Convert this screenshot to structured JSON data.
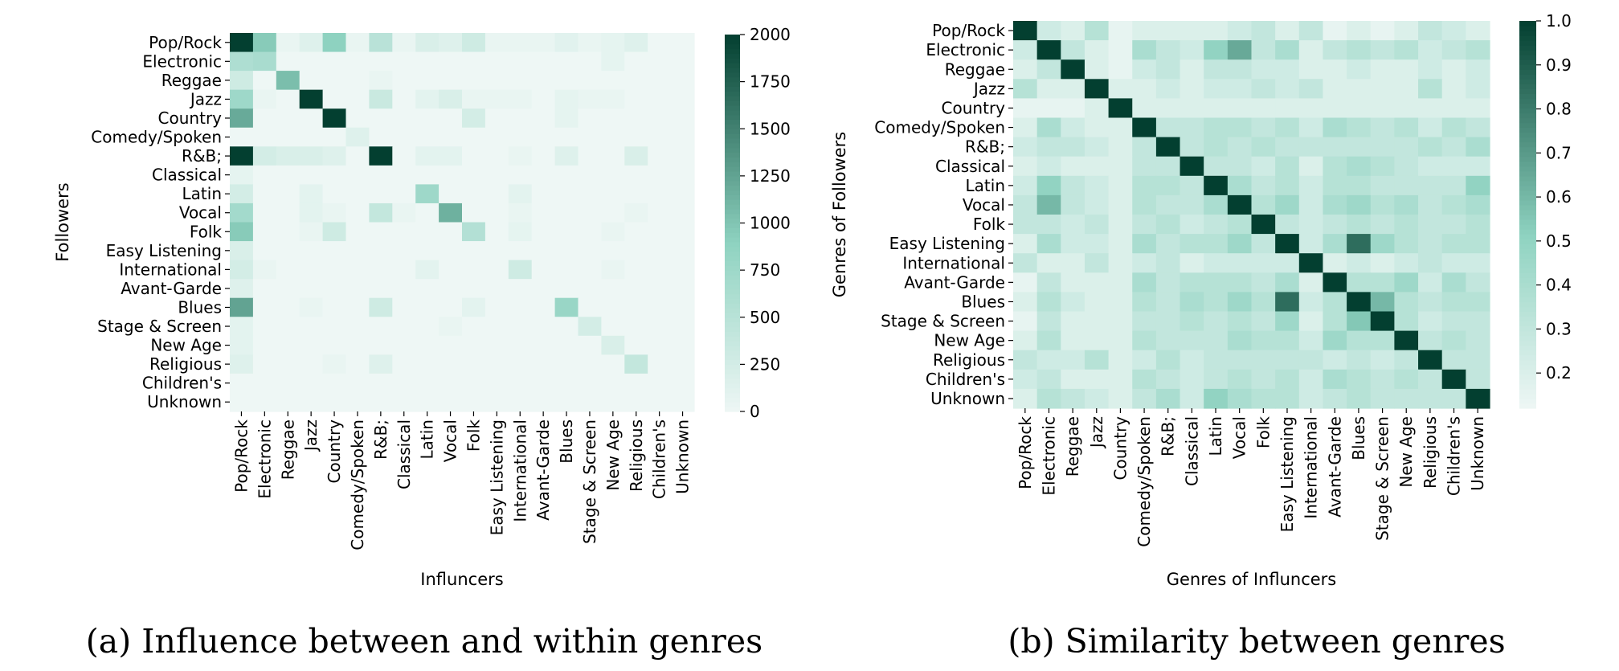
{
  "colors": {
    "low": "#eef7f5",
    "mid": "#8ed2c0",
    "high": "#033f30"
  },
  "chart_data": [
    {
      "type": "heatmap",
      "caption": "(a) Influence between and within genres",
      "xlabel": "Influncers",
      "ylabel": "Followers",
      "categories": [
        "Pop/Rock",
        "Electronic",
        "Reggae",
        "Jazz",
        "Country",
        "Comedy/Spoken",
        "R&B;",
        "Classical",
        "Latin",
        "Vocal",
        "Folk",
        "Easy Listening",
        "International",
        "Avant-Garde",
        "Blues",
        "Stage & Screen",
        "New Age",
        "Religious",
        "Children's",
        "Unknown"
      ],
      "colorbar": {
        "min": 0,
        "max": 2000,
        "ticks": [
          "0",
          "250",
          "500",
          "750",
          "1000",
          "1250",
          "1500",
          "1750",
          "2000"
        ]
      },
      "values": [
        [
          2000,
          950,
          50,
          150,
          900,
          50,
          500,
          50,
          200,
          150,
          300,
          50,
          50,
          50,
          120,
          50,
          80,
          150,
          0,
          0
        ],
        [
          600,
          650,
          0,
          0,
          0,
          0,
          0,
          0,
          0,
          0,
          0,
          0,
          0,
          0,
          0,
          0,
          80,
          0,
          0,
          0
        ],
        [
          300,
          0,
          1050,
          0,
          0,
          0,
          50,
          0,
          0,
          0,
          0,
          0,
          0,
          0,
          0,
          0,
          0,
          0,
          0,
          0
        ],
        [
          750,
          50,
          0,
          2000,
          0,
          0,
          350,
          0,
          100,
          200,
          50,
          50,
          50,
          0,
          80,
          50,
          50,
          0,
          0,
          0
        ],
        [
          1200,
          0,
          0,
          0,
          2000,
          0,
          0,
          0,
          0,
          0,
          250,
          0,
          0,
          0,
          80,
          0,
          0,
          0,
          0,
          0
        ],
        [
          0,
          0,
          0,
          0,
          0,
          150,
          0,
          0,
          0,
          0,
          0,
          0,
          0,
          0,
          0,
          0,
          0,
          0,
          0,
          0
        ],
        [
          2000,
          250,
          200,
          200,
          150,
          0,
          2000,
          0,
          100,
          100,
          0,
          0,
          50,
          0,
          150,
          0,
          0,
          200,
          0,
          0
        ],
        [
          80,
          0,
          0,
          0,
          0,
          0,
          0,
          0,
          0,
          0,
          0,
          0,
          0,
          0,
          0,
          0,
          0,
          0,
          0,
          0
        ],
        [
          250,
          0,
          0,
          100,
          0,
          0,
          0,
          0,
          750,
          0,
          0,
          0,
          100,
          0,
          0,
          0,
          0,
          0,
          0,
          0
        ],
        [
          700,
          0,
          0,
          100,
          50,
          0,
          400,
          50,
          0,
          1150,
          0,
          0,
          50,
          0,
          0,
          0,
          0,
          50,
          0,
          0
        ],
        [
          950,
          0,
          0,
          50,
          300,
          0,
          0,
          0,
          0,
          0,
          550,
          0,
          80,
          0,
          0,
          0,
          50,
          0,
          0,
          0
        ],
        [
          200,
          0,
          0,
          0,
          0,
          0,
          0,
          0,
          0,
          0,
          0,
          0,
          0,
          0,
          0,
          0,
          0,
          0,
          0,
          0
        ],
        [
          250,
          50,
          0,
          0,
          0,
          0,
          0,
          0,
          100,
          0,
          0,
          0,
          300,
          0,
          0,
          0,
          50,
          0,
          0,
          0
        ],
        [
          150,
          0,
          0,
          0,
          0,
          0,
          0,
          0,
          0,
          0,
          0,
          0,
          0,
          0,
          0,
          0,
          0,
          0,
          0,
          0
        ],
        [
          1250,
          0,
          0,
          50,
          0,
          0,
          300,
          0,
          0,
          0,
          100,
          0,
          0,
          0,
          800,
          0,
          0,
          0,
          0,
          0
        ],
        [
          100,
          0,
          0,
          0,
          0,
          0,
          0,
          0,
          0,
          50,
          0,
          0,
          0,
          0,
          0,
          250,
          0,
          0,
          0,
          0
        ],
        [
          100,
          0,
          0,
          0,
          0,
          0,
          0,
          0,
          0,
          0,
          0,
          0,
          0,
          0,
          0,
          0,
          200,
          0,
          0,
          0
        ],
        [
          150,
          0,
          0,
          0,
          50,
          0,
          150,
          0,
          0,
          0,
          0,
          0,
          0,
          0,
          0,
          0,
          0,
          400,
          0,
          0
        ],
        [
          0,
          0,
          0,
          0,
          0,
          0,
          0,
          0,
          0,
          0,
          0,
          0,
          0,
          0,
          0,
          0,
          0,
          0,
          0,
          0
        ],
        [
          0,
          0,
          0,
          0,
          0,
          0,
          0,
          0,
          0,
          0,
          0,
          0,
          0,
          0,
          0,
          0,
          0,
          0,
          0,
          0
        ]
      ]
    },
    {
      "type": "heatmap",
      "caption": "(b) Similarity between genres",
      "xlabel": "Genres of Influncers",
      "ylabel": "Genres of Followers",
      "categories": [
        "Pop/Rock",
        "Electronic",
        "Reggae",
        "Jazz",
        "Country",
        "Comedy/Spoken",
        "R&B;",
        "Classical",
        "Latin",
        "Vocal",
        "Folk",
        "Easy Listening",
        "International",
        "Avant-Garde",
        "Blues",
        "Stage & Screen",
        "New Age",
        "Religious",
        "Children's",
        "Unknown"
      ],
      "colorbar": {
        "min": 0.12,
        "max": 1.0,
        "ticks": [
          "0.2",
          "0.3",
          "0.4",
          "0.5",
          "0.6",
          "0.7",
          "0.8",
          "0.9",
          "1.0"
        ]
      },
      "values": [
        [
          1.0,
          0.25,
          0.2,
          0.35,
          0.15,
          0.2,
          0.2,
          0.2,
          0.2,
          0.25,
          0.3,
          0.2,
          0.3,
          0.15,
          0.2,
          0.15,
          0.2,
          0.3,
          0.25,
          0.2
        ],
        [
          0.25,
          1.0,
          0.3,
          0.2,
          0.15,
          0.4,
          0.3,
          0.25,
          0.5,
          0.65,
          0.3,
          0.4,
          0.2,
          0.3,
          0.35,
          0.3,
          0.35,
          0.25,
          0.3,
          0.35
        ],
        [
          0.2,
          0.3,
          1.0,
          0.2,
          0.15,
          0.25,
          0.3,
          0.2,
          0.3,
          0.3,
          0.25,
          0.25,
          0.2,
          0.2,
          0.25,
          0.2,
          0.2,
          0.25,
          0.2,
          0.25
        ],
        [
          0.35,
          0.2,
          0.2,
          1.0,
          0.2,
          0.2,
          0.25,
          0.2,
          0.25,
          0.25,
          0.3,
          0.25,
          0.3,
          0.2,
          0.2,
          0.2,
          0.2,
          0.35,
          0.2,
          0.25
        ],
        [
          0.15,
          0.15,
          0.15,
          0.2,
          1.0,
          0.2,
          0.2,
          0.2,
          0.2,
          0.2,
          0.2,
          0.2,
          0.2,
          0.2,
          0.2,
          0.2,
          0.2,
          0.2,
          0.2,
          0.2
        ],
        [
          0.2,
          0.4,
          0.25,
          0.2,
          0.2,
          1.0,
          0.3,
          0.3,
          0.35,
          0.35,
          0.3,
          0.35,
          0.25,
          0.4,
          0.35,
          0.3,
          0.35,
          0.25,
          0.35,
          0.3
        ],
        [
          0.25,
          0.3,
          0.3,
          0.25,
          0.2,
          0.3,
          1.0,
          0.3,
          0.35,
          0.3,
          0.35,
          0.3,
          0.3,
          0.3,
          0.3,
          0.3,
          0.3,
          0.35,
          0.3,
          0.4
        ],
        [
          0.2,
          0.25,
          0.2,
          0.2,
          0.2,
          0.3,
          0.3,
          1.0,
          0.3,
          0.3,
          0.25,
          0.35,
          0.2,
          0.35,
          0.4,
          0.35,
          0.3,
          0.25,
          0.25,
          0.25
        ],
        [
          0.25,
          0.5,
          0.3,
          0.25,
          0.2,
          0.35,
          0.35,
          0.3,
          1.0,
          0.4,
          0.3,
          0.35,
          0.25,
          0.35,
          0.35,
          0.3,
          0.3,
          0.3,
          0.3,
          0.5
        ],
        [
          0.3,
          0.6,
          0.3,
          0.25,
          0.2,
          0.35,
          0.3,
          0.3,
          0.4,
          1.0,
          0.35,
          0.45,
          0.25,
          0.4,
          0.45,
          0.35,
          0.4,
          0.3,
          0.35,
          0.4
        ],
        [
          0.3,
          0.3,
          0.25,
          0.3,
          0.2,
          0.3,
          0.35,
          0.25,
          0.3,
          0.35,
          1.0,
          0.3,
          0.25,
          0.3,
          0.35,
          0.3,
          0.35,
          0.3,
          0.3,
          0.35
        ],
        [
          0.2,
          0.4,
          0.25,
          0.25,
          0.2,
          0.4,
          0.3,
          0.35,
          0.35,
          0.45,
          0.3,
          1.0,
          0.25,
          0.4,
          0.85,
          0.45,
          0.35,
          0.3,
          0.35,
          0.35
        ],
        [
          0.3,
          0.2,
          0.2,
          0.3,
          0.2,
          0.25,
          0.3,
          0.2,
          0.25,
          0.25,
          0.25,
          0.25,
          1.0,
          0.2,
          0.25,
          0.2,
          0.25,
          0.3,
          0.25,
          0.25
        ],
        [
          0.15,
          0.3,
          0.2,
          0.2,
          0.2,
          0.4,
          0.3,
          0.35,
          0.35,
          0.35,
          0.3,
          0.4,
          0.2,
          1.0,
          0.35,
          0.35,
          0.45,
          0.25,
          0.4,
          0.3
        ],
        [
          0.2,
          0.35,
          0.25,
          0.2,
          0.2,
          0.35,
          0.3,
          0.4,
          0.35,
          0.45,
          0.35,
          0.85,
          0.25,
          0.35,
          1.0,
          0.6,
          0.35,
          0.3,
          0.35,
          0.35
        ],
        [
          0.15,
          0.3,
          0.2,
          0.2,
          0.2,
          0.3,
          0.3,
          0.35,
          0.3,
          0.35,
          0.3,
          0.45,
          0.2,
          0.35,
          0.55,
          1.0,
          0.35,
          0.25,
          0.3,
          0.3
        ],
        [
          0.2,
          0.35,
          0.2,
          0.2,
          0.2,
          0.35,
          0.3,
          0.3,
          0.3,
          0.4,
          0.35,
          0.35,
          0.25,
          0.45,
          0.35,
          0.35,
          1.0,
          0.3,
          0.35,
          0.3
        ],
        [
          0.3,
          0.25,
          0.25,
          0.35,
          0.2,
          0.25,
          0.35,
          0.25,
          0.3,
          0.3,
          0.3,
          0.3,
          0.3,
          0.25,
          0.3,
          0.25,
          0.3,
          1.0,
          0.3,
          0.3
        ],
        [
          0.25,
          0.3,
          0.2,
          0.2,
          0.2,
          0.35,
          0.3,
          0.25,
          0.3,
          0.35,
          0.3,
          0.35,
          0.25,
          0.4,
          0.35,
          0.3,
          0.35,
          0.3,
          1.0,
          0.3
        ],
        [
          0.2,
          0.35,
          0.3,
          0.25,
          0.2,
          0.3,
          0.4,
          0.25,
          0.5,
          0.4,
          0.35,
          0.35,
          0.25,
          0.3,
          0.35,
          0.3,
          0.3,
          0.3,
          0.3,
          1.0
        ]
      ]
    }
  ]
}
